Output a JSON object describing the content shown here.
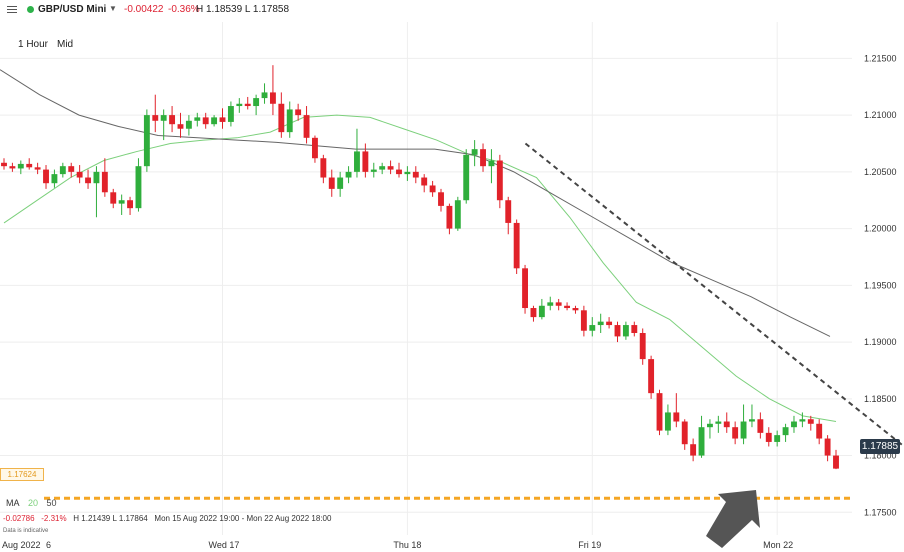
{
  "header": {
    "symbol": "GBP/USD Mini",
    "change": "-0.00422",
    "change_pct": "-0.36%",
    "high_low": "H 1.18539  L 1.17858",
    "timeframe": "1 Hour",
    "price_type": "Mid"
  },
  "indicators": {
    "label": "MA",
    "ma_fast": "20",
    "ma_slow": "50",
    "stats_change": "-0.02786",
    "stats_pct": "-2.31%",
    "stats_hl": "H 1.21439   L 1.17864",
    "stats_range": "Mon 15 Aug 2022 19:00 - Mon 22 Aug 2022 18:00",
    "note": "Data is indicative"
  },
  "price_tag": "1.17885",
  "support_tag": "1.17624",
  "colors": {
    "up": "#2fae3c",
    "down": "#e1222a",
    "ma20": "#7cd07c",
    "ma50": "#666666",
    "trendline": "#444444",
    "support": "#f5a623",
    "price_tag_bg": "#2b3a4a"
  },
  "chart_data": {
    "type": "candlestick",
    "ylim": [
      1.173,
      1.2175
    ],
    "yticks": [
      "1.21500",
      "1.21000",
      "1.20500",
      "1.20000",
      "1.19500",
      "1.19000",
      "1.18500",
      "1.18000",
      "1.17500"
    ],
    "xticks": [
      {
        "label": "Aug 2022",
        "index": 0
      },
      {
        "label": "6",
        "index": 6
      },
      {
        "label": "Wed 17",
        "index": 26
      },
      {
        "label": "Thu 18",
        "index": 48
      },
      {
        "label": "Fri 19",
        "index": 70
      },
      {
        "label": "Mon 22",
        "index": 92
      }
    ],
    "ohlc": [
      [
        1.2058,
        1.2062,
        1.2052,
        1.2055
      ],
      [
        1.2055,
        1.2058,
        1.205,
        1.2053
      ],
      [
        1.2053,
        1.206,
        1.2048,
        1.2057
      ],
      [
        1.2057,
        1.2062,
        1.2052,
        1.2054
      ],
      [
        1.2054,
        1.2058,
        1.2048,
        1.2052
      ],
      [
        1.2052,
        1.2056,
        1.2035,
        1.204
      ],
      [
        1.204,
        1.2052,
        1.2036,
        1.2048
      ],
      [
        1.2048,
        1.2058,
        1.2045,
        1.2055
      ],
      [
        1.2055,
        1.2058,
        1.2045,
        1.205
      ],
      [
        1.205,
        1.2056,
        1.204,
        1.2045
      ],
      [
        1.2045,
        1.2052,
        1.2035,
        1.204
      ],
      [
        1.204,
        1.2055,
        1.201,
        1.205
      ],
      [
        1.205,
        1.2062,
        1.2028,
        1.2032
      ],
      [
        1.2032,
        1.2035,
        1.2018,
        1.2022
      ],
      [
        1.2022,
        1.203,
        1.2012,
        1.2025
      ],
      [
        1.2025,
        1.2028,
        1.2012,
        1.2018
      ],
      [
        1.2018,
        1.2062,
        1.2015,
        1.2055
      ],
      [
        1.2055,
        1.2105,
        1.205,
        1.21
      ],
      [
        1.21,
        1.2118,
        1.2085,
        1.2095
      ],
      [
        1.2095,
        1.2105,
        1.2078,
        1.21
      ],
      [
        1.21,
        1.2108,
        1.2085,
        1.2092
      ],
      [
        1.2092,
        1.2102,
        1.208,
        1.2088
      ],
      [
        1.2088,
        1.21,
        1.2082,
        1.2095
      ],
      [
        1.2095,
        1.2102,
        1.209,
        1.2098
      ],
      [
        1.2098,
        1.2102,
        1.2088,
        1.2092
      ],
      [
        1.2092,
        1.21,
        1.209,
        1.2098
      ],
      [
        1.2098,
        1.2106,
        1.2088,
        1.2094
      ],
      [
        1.2094,
        1.2112,
        1.209,
        1.2108
      ],
      [
        1.2108,
        1.2115,
        1.2102,
        1.211
      ],
      [
        1.211,
        1.2116,
        1.2105,
        1.2108
      ],
      [
        1.2108,
        1.2118,
        1.21,
        1.2115
      ],
      [
        1.2115,
        1.2128,
        1.211,
        1.212
      ],
      [
        1.212,
        1.2144,
        1.21,
        1.211
      ],
      [
        1.211,
        1.212,
        1.208,
        1.2085
      ],
      [
        1.2085,
        1.2112,
        1.208,
        1.2105
      ],
      [
        1.2105,
        1.211,
        1.2095,
        1.21
      ],
      [
        1.21,
        1.2108,
        1.2075,
        1.208
      ],
      [
        1.208,
        1.2082,
        1.2058,
        1.2062
      ],
      [
        1.2062,
        1.2065,
        1.204,
        1.2045
      ],
      [
        1.2045,
        1.2052,
        1.2028,
        1.2035
      ],
      [
        1.2035,
        1.205,
        1.2028,
        1.2045
      ],
      [
        1.2045,
        1.2055,
        1.204,
        1.205
      ],
      [
        1.205,
        1.2088,
        1.2045,
        1.2068
      ],
      [
        1.2068,
        1.2075,
        1.2045,
        1.205
      ],
      [
        1.205,
        1.2058,
        1.2045,
        1.2052
      ],
      [
        1.2052,
        1.2058,
        1.2048,
        1.2055
      ],
      [
        1.2055,
        1.206,
        1.2048,
        1.2052
      ],
      [
        1.2052,
        1.2058,
        1.2045,
        1.2048
      ],
      [
        1.2048,
        1.2055,
        1.2042,
        1.205
      ],
      [
        1.205,
        1.2055,
        1.204,
        1.2045
      ],
      [
        1.2045,
        1.2048,
        1.2032,
        1.2038
      ],
      [
        1.2038,
        1.2042,
        1.2028,
        1.2032
      ],
      [
        1.2032,
        1.2035,
        1.2015,
        1.202
      ],
      [
        1.202,
        1.2022,
        1.1995,
        1.2
      ],
      [
        1.2,
        1.2028,
        1.1998,
        1.2025
      ],
      [
        1.2025,
        1.207,
        1.2022,
        1.2065
      ],
      [
        1.2065,
        1.2078,
        1.2055,
        1.207
      ],
      [
        1.207,
        1.2075,
        1.205,
        1.2055
      ],
      [
        1.2055,
        1.207,
        1.204,
        1.206
      ],
      [
        1.206,
        1.2065,
        1.2018,
        1.2025
      ],
      [
        1.2025,
        1.2028,
        1.1995,
        1.2005
      ],
      [
        1.2005,
        1.2008,
        1.196,
        1.1965
      ],
      [
        1.1965,
        1.1968,
        1.1925,
        1.193
      ],
      [
        1.193,
        1.1932,
        1.1918,
        1.1922
      ],
      [
        1.1922,
        1.1938,
        1.192,
        1.1932
      ],
      [
        1.1932,
        1.194,
        1.1928,
        1.1935
      ],
      [
        1.1935,
        1.1938,
        1.1928,
        1.1932
      ],
      [
        1.1932,
        1.1935,
        1.1928,
        1.193
      ],
      [
        1.193,
        1.1932,
        1.1925,
        1.1928
      ],
      [
        1.1928,
        1.1932,
        1.1905,
        1.191
      ],
      [
        1.191,
        1.1922,
        1.1905,
        1.1915
      ],
      [
        1.1915,
        1.1925,
        1.1908,
        1.1918
      ],
      [
        1.1918,
        1.1922,
        1.1912,
        1.1915
      ],
      [
        1.1915,
        1.1918,
        1.19,
        1.1905
      ],
      [
        1.1905,
        1.1918,
        1.1902,
        1.1915
      ],
      [
        1.1915,
        1.1918,
        1.1905,
        1.1908
      ],
      [
        1.1908,
        1.1912,
        1.188,
        1.1885
      ],
      [
        1.1885,
        1.1888,
        1.185,
        1.1855
      ],
      [
        1.1855,
        1.1858,
        1.1818,
        1.1822
      ],
      [
        1.1822,
        1.1845,
        1.1818,
        1.1838
      ],
      [
        1.1838,
        1.1855,
        1.1825,
        1.183
      ],
      [
        1.183,
        1.1832,
        1.1805,
        1.181
      ],
      [
        1.181,
        1.1815,
        1.1795,
        1.18
      ],
      [
        1.18,
        1.1835,
        1.1798,
        1.1825
      ],
      [
        1.1825,
        1.1832,
        1.1815,
        1.1828
      ],
      [
        1.1828,
        1.1835,
        1.182,
        1.183
      ],
      [
        1.183,
        1.1838,
        1.182,
        1.1825
      ],
      [
        1.1825,
        1.183,
        1.181,
        1.1815
      ],
      [
        1.1815,
        1.1845,
        1.181,
        1.183
      ],
      [
        1.183,
        1.1845,
        1.1825,
        1.1832
      ],
      [
        1.1832,
        1.1838,
        1.1815,
        1.182
      ],
      [
        1.182,
        1.1825,
        1.1808,
        1.1812
      ],
      [
        1.1812,
        1.1822,
        1.1808,
        1.1818
      ],
      [
        1.1818,
        1.1828,
        1.1812,
        1.1825
      ],
      [
        1.1825,
        1.1835,
        1.182,
        1.183
      ],
      [
        1.183,
        1.1838,
        1.1825,
        1.1832
      ],
      [
        1.1832,
        1.1835,
        1.1822,
        1.1828
      ],
      [
        1.1828,
        1.1832,
        1.181,
        1.1815
      ],
      [
        1.1815,
        1.1818,
        1.1795,
        1.18
      ],
      [
        1.18,
        1.1805,
        1.1788,
        1.17885
      ]
    ],
    "ma20": [
      1.2005,
      1.2025,
      1.2045,
      1.206,
      1.2068,
      1.2075,
      1.2078,
      1.208,
      1.2085,
      1.2098,
      1.21,
      1.2098,
      1.2088,
      1.2078,
      1.2065,
      1.2058,
      1.2045,
      1.201,
      1.197,
      1.1935,
      1.192,
      1.1895,
      1.187,
      1.185,
      1.1835,
      1.183
    ],
    "ma50": [
      1.214,
      1.2118,
      1.21,
      1.209,
      1.2082,
      1.208,
      1.2078,
      1.2076,
      1.2073,
      1.207,
      1.207,
      1.207,
      1.2065,
      1.205,
      1.203,
      1.201,
      1.199,
      1.197,
      1.1955,
      1.194,
      1.1922,
      1.1905
    ],
    "support": 1.17624,
    "trendline": [
      {
        "index": 63,
        "price": 1.2075
      },
      {
        "index": 105,
        "price": 1.18
      }
    ],
    "annotations": [
      "arrow pointing to support level"
    ]
  }
}
